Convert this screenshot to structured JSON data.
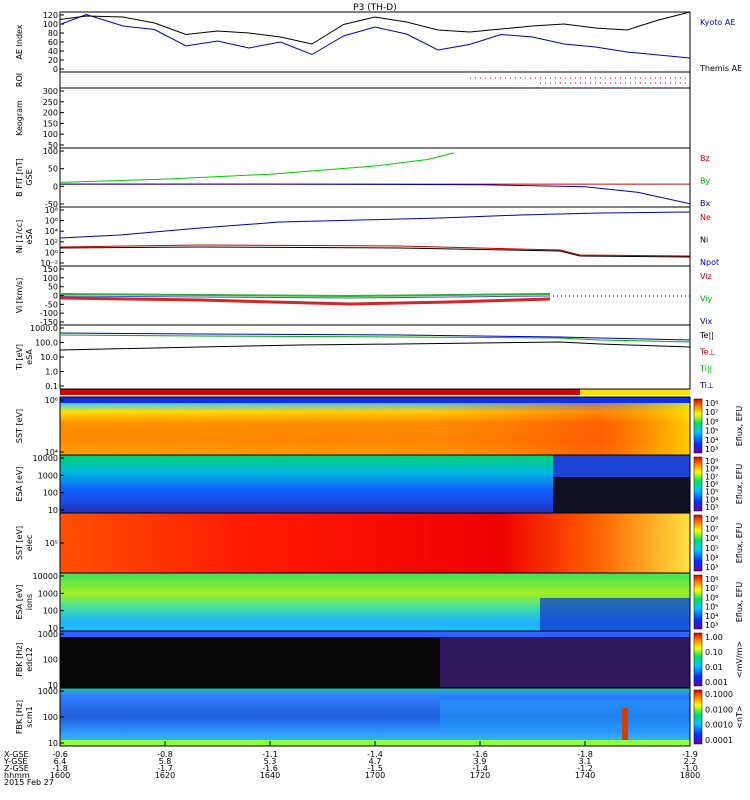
{
  "chart_data": {
    "type": "line",
    "title": "P3 (TH-D)",
    "date": "2015 Feb 27",
    "time_axis": {
      "label": "hhmm",
      "range_minutes": [
        960,
        1080
      ],
      "tick_minutes": [
        960,
        980,
        1000,
        1020,
        1040,
        1060,
        1080
      ],
      "tick_labels": [
        "1600",
        "1620",
        "1640",
        "1700",
        "1720",
        "1740",
        "1800"
      ]
    },
    "orbit_rows": [
      {
        "label": "X-GSE",
        "values": [
          "-0.6",
          "-0.8",
          "-1.1",
          "-1.4",
          "-1.6",
          "-1.8",
          "-1.9"
        ]
      },
      {
        "label": "Y-GSE",
        "values": [
          "6.4",
          "5.8",
          "5.3",
          "4.7",
          "3.9",
          "3.1",
          "2.2"
        ]
      },
      {
        "label": "Z-GSE",
        "values": [
          "-1.8",
          "-1.7",
          "-1.6",
          "-1.5",
          "-1.4",
          "-1.2",
          "-1.0"
        ]
      }
    ],
    "panels": [
      {
        "name": "ae-index",
        "ylabel": "AE Index",
        "yticks": [
          "120",
          "100",
          "80",
          "60",
          "40",
          "20",
          "0"
        ],
        "ylim": [
          0,
          120
        ],
        "legend": [
          {
            "label": "Kyoto AE",
            "color": "#0000bb"
          },
          {
            "label": "Themis AE",
            "color": "#000000"
          }
        ],
        "series": [
          {
            "name": "Kyoto AE",
            "color": "#0000bb",
            "x": [
              960,
              965,
              972,
              978,
              984,
              990,
              996,
              1002,
              1008,
              1014,
              1020,
              1026,
              1032,
              1038,
              1044,
              1050,
              1056,
              1062,
              1068,
              1074,
              1080
            ],
            "y": [
              95,
              115,
              92,
              85,
              52,
              62,
              48,
              60,
              35,
              72,
              90,
              76,
              44,
              55,
              75,
              70,
              56,
              50,
              40,
              34,
              28
            ]
          },
          {
            "name": "Themis AE",
            "color": "#000000",
            "x": [
              960,
              965,
              972,
              978,
              984,
              990,
              996,
              1002,
              1008,
              1014,
              1020,
              1026,
              1032,
              1038,
              1044,
              1050,
              1056,
              1062,
              1068,
              1074,
              1080
            ],
            "y": [
              105,
              112,
              110,
              98,
              75,
              82,
              78,
              70,
              56,
              95,
              110,
              100,
              84,
              80,
              86,
              92,
              96,
              88,
              84,
              104,
              120
            ]
          }
        ]
      },
      {
        "name": "roi",
        "ylabel": "ROI",
        "yticks": []
      },
      {
        "name": "keogram",
        "ylabel": "Keogram",
        "yticks": [
          "300",
          "250",
          "200",
          "150",
          "100",
          "50"
        ]
      },
      {
        "name": "b-field",
        "ylabel": "B FIT [nT]",
        "sub": "GSE",
        "yticks": [
          "100",
          "50",
          "0",
          "-50"
        ],
        "ylim": [
          -70,
          110
        ],
        "legend": [
          {
            "label": "Bz",
            "color": "#cc0000"
          },
          {
            "label": "By",
            "color": "#00aa00"
          },
          {
            "label": "Bx",
            "color": "#0000bb"
          }
        ],
        "series": [
          {
            "name": "Bz",
            "color": "#cc0000",
            "x": [
              960,
              1080
            ],
            "y": [
              0,
              0
            ]
          },
          {
            "name": "By",
            "color": "#00cc00",
            "x": [
              960,
              980,
              1000,
              1020,
              1030,
              1035
            ],
            "y": [
              5,
              15,
              30,
              55,
              75,
              95
            ]
          },
          {
            "name": "Bx",
            "color": "#0000bb",
            "x": [
              960,
              1000,
              1040,
              1060,
              1070,
              1080
            ],
            "y": [
              0,
              0,
              -2,
              -8,
              -25,
              -60
            ]
          }
        ]
      },
      {
        "name": "density",
        "ylabel": "Ni [1/cc]",
        "sub": "eSA",
        "yticks": [
          "10⁸",
          "10⁶",
          "10⁴",
          "10²",
          "10⁰",
          "10⁻²"
        ],
        "legend": [
          {
            "label": "Ne",
            "color": "#cc0000"
          },
          {
            "label": "Ni",
            "color": "#000000"
          },
          {
            "label": "Npot",
            "color": "#0000bb"
          }
        ]
      },
      {
        "name": "velocity",
        "ylabel": "Vi [km/s]",
        "yticks": [
          "150",
          "100",
          "50",
          "0",
          "-50",
          "-100",
          "-150"
        ],
        "ylim": [
          -170,
          170
        ],
        "legend": [
          {
            "label": "Viz",
            "color": "#cc0000"
          },
          {
            "label": "Viy",
            "color": "#00aa00"
          },
          {
            "label": "Vix",
            "color": "#0000bb"
          }
        ]
      },
      {
        "name": "temperature",
        "ylabel": "Ti [eV]",
        "sub": "eSA",
        "yticks": [
          "1000.0",
          "100.0",
          "10.0",
          "1.0",
          "0.1"
        ],
        "legend": [
          {
            "label": "Te||",
            "color": "#000000"
          },
          {
            "label": "Te⊥",
            "color": "#cc0000"
          },
          {
            "label": "Ti||",
            "color": "#00aa00"
          },
          {
            "label": "Ti⊥",
            "color": "#0000bb"
          }
        ]
      },
      {
        "name": "sst-electron",
        "type": "heatmap",
        "ylabel": "SST [eV]",
        "yticks": [
          "10⁶",
          "10⁴"
        ]
      },
      {
        "name": "esa-electron",
        "type": "heatmap",
        "ylabel": "ESA [eV]",
        "yticks": [
          "10000",
          "1000",
          "100",
          "10"
        ]
      },
      {
        "name": "sst-ion",
        "type": "heatmap",
        "ylabel": "SST [eV]",
        "sub": "elec",
        "yticks": [
          "10⁵"
        ]
      },
      {
        "name": "esa-ion",
        "type": "heatmap",
        "ylabel": "ESA [eV]",
        "sub": "ions",
        "yticks": [
          "10000",
          "1000",
          "100",
          "10"
        ]
      },
      {
        "name": "fbk-e",
        "type": "heatmap",
        "ylabel": "FBK [Hz]",
        "sub": "edc12",
        "yticks": [
          "1000",
          "100",
          "10"
        ]
      },
      {
        "name": "fbk-b",
        "type": "heatmap",
        "ylabel": "FBK [Hz]",
        "sub": "scm1",
        "yticks": [
          "1000",
          "100",
          "10"
        ]
      }
    ],
    "colorbars": [
      {
        "label": "Eflux, EFU",
        "ticks": [
          "10⁸",
          "10⁷",
          "10⁶",
          "10⁵",
          "10⁴",
          "10³"
        ]
      },
      {
        "label": "Eflux, EFU",
        "ticks": [
          "10⁹",
          "10⁸",
          "10⁷",
          "10⁶",
          "10⁵",
          "10⁴",
          "10³"
        ]
      },
      {
        "label": "Eflux, EFU",
        "ticks": [
          "10⁸",
          "10⁷",
          "10⁶",
          "10⁵",
          "10⁴",
          "10³"
        ]
      },
      {
        "label": "Eflux, EFU",
        "ticks": [
          "10⁸",
          "10⁷",
          "10⁶",
          "10⁵",
          "10⁴",
          "10³"
        ]
      },
      {
        "label": "<mV/m>",
        "ticks": [
          "1.00",
          "0.10",
          "0.01",
          "0.001"
        ]
      },
      {
        "label": "<nT>",
        "ticks": [
          "0.1000",
          "0.0100",
          "0.0010",
          "0.0001"
        ]
      }
    ]
  }
}
